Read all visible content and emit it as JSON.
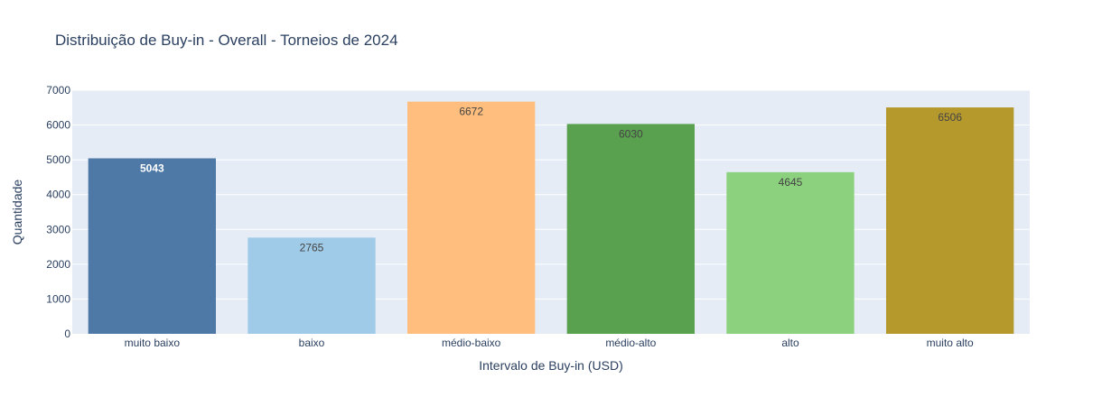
{
  "chart_data": {
    "type": "bar",
    "title": "Distribuição de Buy-in - Overall -  Torneios de 2024",
    "xlabel": "Intervalo de Buy-in (USD)",
    "ylabel": "Quantidade",
    "categories": [
      "muito baixo",
      "baixo",
      "médio-baixo",
      "médio-alto",
      "alto",
      "muito alto"
    ],
    "values": [
      5043,
      2765,
      6672,
      6030,
      4645,
      6506
    ],
    "data_labels": [
      "5043",
      "2765",
      "6672",
      "6030",
      "4645",
      "6506"
    ],
    "colors": [
      "#4e79a7",
      "#a0cbe8",
      "#ffbe7d",
      "#59a14f",
      "#8cd17d",
      "#b6992d"
    ],
    "label_colors": [
      "#ffffff",
      "#444444",
      "#444444",
      "#444444",
      "#444444",
      "#444444"
    ],
    "yticks": [
      0,
      1000,
      2000,
      3000,
      4000,
      5000,
      6000,
      7000
    ],
    "ylim": [
      0,
      7000
    ],
    "grid": true,
    "plot_background": "#e5ecf6",
    "legend": "none"
  }
}
